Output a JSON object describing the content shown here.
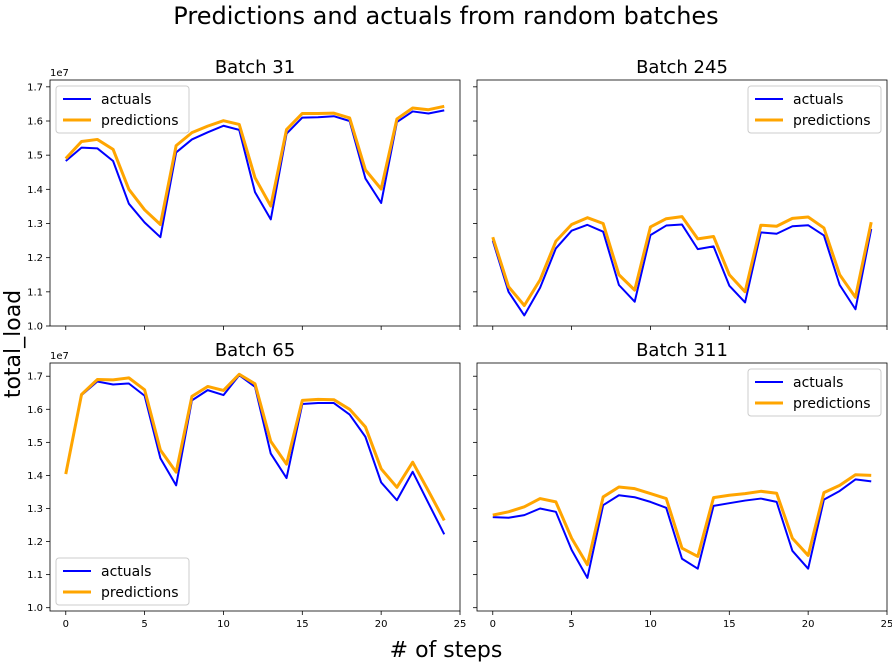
{
  "figure": {
    "title": "Predictions and actuals from random batches",
    "xlabel": "# of steps",
    "ylabel": "total_load"
  },
  "colors": {
    "actuals": "#0000ff",
    "predictions": "#ffa500"
  },
  "chart_data": [
    {
      "type": "line",
      "title": "Batch 31",
      "offset_label": "1e7",
      "xlim": [
        -1,
        25
      ],
      "ylim": [
        1.0,
        1.72
      ],
      "xticks": [
        "0",
        "5",
        "10",
        "15",
        "20",
        "25"
      ],
      "yticks": [
        "1.0",
        "1.1",
        "1.2",
        "1.3",
        "1.4",
        "1.5",
        "1.6",
        "1.7"
      ],
      "legend_position": "upper-left",
      "x": [
        0,
        1,
        2,
        3,
        4,
        5,
        6,
        7,
        8,
        9,
        10,
        11,
        12,
        13,
        14,
        15,
        16,
        17,
        18,
        19,
        20,
        21,
        22,
        23,
        24
      ],
      "series": [
        {
          "name": "actuals",
          "values": [
            1.483,
            1.522,
            1.52,
            1.483,
            1.358,
            1.303,
            1.26,
            1.508,
            1.546,
            1.567,
            1.586,
            1.574,
            1.392,
            1.312,
            1.563,
            1.61,
            1.611,
            1.614,
            1.6,
            1.432,
            1.36,
            1.597,
            1.628,
            1.622,
            1.631
          ]
        },
        {
          "name": "predictions",
          "values": [
            1.49,
            1.54,
            1.546,
            1.517,
            1.4,
            1.34,
            1.297,
            1.528,
            1.566,
            1.585,
            1.601,
            1.59,
            1.434,
            1.351,
            1.575,
            1.622,
            1.622,
            1.623,
            1.609,
            1.457,
            1.401,
            1.606,
            1.638,
            1.633,
            1.643
          ]
        }
      ]
    },
    {
      "type": "line",
      "title": "Batch 245",
      "offset_label": "",
      "xlim": [
        -1,
        25
      ],
      "ylim": [
        1.0,
        1.72
      ],
      "xticks": [
        "0",
        "5",
        "10",
        "15",
        "20",
        "25"
      ],
      "yticks": [
        "1.0",
        "1.1",
        "1.2",
        "1.3",
        "1.4",
        "1.5",
        "1.6",
        "1.7"
      ],
      "legend_position": "upper-right",
      "x": [
        0,
        1,
        2,
        3,
        4,
        5,
        6,
        7,
        8,
        9,
        10,
        11,
        12,
        13,
        14,
        15,
        16,
        17,
        18,
        19,
        20,
        21,
        22,
        23,
        24
      ],
      "series": [
        {
          "name": "actuals",
          "values": [
            1.25,
            1.1,
            1.031,
            1.112,
            1.227,
            1.279,
            1.296,
            1.276,
            1.12,
            1.071,
            1.266,
            1.294,
            1.297,
            1.225,
            1.233,
            1.118,
            1.069,
            1.274,
            1.27,
            1.292,
            1.295,
            1.265,
            1.12,
            1.049,
            1.284
          ]
        },
        {
          "name": "predictions",
          "values": [
            1.26,
            1.115,
            1.06,
            1.135,
            1.248,
            1.297,
            1.317,
            1.3,
            1.15,
            1.105,
            1.29,
            1.314,
            1.32,
            1.255,
            1.262,
            1.15,
            1.1,
            1.295,
            1.292,
            1.315,
            1.319,
            1.287,
            1.15,
            1.084,
            1.304
          ]
        }
      ]
    },
    {
      "type": "line",
      "title": "Batch 65",
      "offset_label": "1e7",
      "xlim": [
        -1,
        25
      ],
      "ylim": [
        0.99,
        1.74
      ],
      "xticks": [
        "0",
        "5",
        "10",
        "15",
        "20",
        "25"
      ],
      "yticks": [
        "1.0",
        "1.1",
        "1.2",
        "1.3",
        "1.4",
        "1.5",
        "1.6",
        "1.7"
      ],
      "legend_position": "lower-left",
      "x": [
        0,
        1,
        2,
        3,
        4,
        5,
        6,
        7,
        8,
        9,
        10,
        11,
        12,
        13,
        14,
        15,
        16,
        17,
        18,
        19,
        20,
        21,
        22,
        23,
        24
      ],
      "series": [
        {
          "name": "actuals",
          "values": [
            1.406,
            1.643,
            1.684,
            1.675,
            1.678,
            1.641,
            1.452,
            1.37,
            1.627,
            1.658,
            1.643,
            1.703,
            1.668,
            1.466,
            1.392,
            1.616,
            1.619,
            1.619,
            1.584,
            1.517,
            1.379,
            1.325,
            1.411,
            1.316,
            1.222
          ]
        },
        {
          "name": "predictions",
          "values": [
            1.404,
            1.645,
            1.69,
            1.689,
            1.695,
            1.659,
            1.477,
            1.41,
            1.639,
            1.669,
            1.657,
            1.706,
            1.677,
            1.503,
            1.434,
            1.627,
            1.63,
            1.629,
            1.6,
            1.547,
            1.42,
            1.364,
            1.44,
            1.353,
            1.264
          ]
        }
      ]
    },
    {
      "type": "line",
      "title": "Batch 311",
      "offset_label": "",
      "xlim": [
        -1,
        25
      ],
      "ylim": [
        0.99,
        1.74
      ],
      "xticks": [
        "0",
        "5",
        "10",
        "15",
        "20",
        "25"
      ],
      "yticks": [
        "1.0",
        "1.1",
        "1.2",
        "1.3",
        "1.4",
        "1.5",
        "1.6",
        "1.7"
      ],
      "legend_position": "upper-right",
      "x": [
        0,
        1,
        2,
        3,
        4,
        5,
        6,
        7,
        8,
        9,
        10,
        11,
        12,
        13,
        14,
        15,
        16,
        17,
        18,
        19,
        20,
        21,
        22,
        23,
        24
      ],
      "series": [
        {
          "name": "actuals",
          "values": [
            1.274,
            1.272,
            1.28,
            1.3,
            1.29,
            1.175,
            1.09,
            1.31,
            1.34,
            1.334,
            1.32,
            1.302,
            1.148,
            1.118,
            1.308,
            1.316,
            1.324,
            1.33,
            1.32,
            1.172,
            1.118,
            1.327,
            1.353,
            1.388,
            1.382
          ]
        },
        {
          "name": "predictions",
          "values": [
            1.28,
            1.29,
            1.305,
            1.33,
            1.32,
            1.21,
            1.13,
            1.335,
            1.365,
            1.36,
            1.345,
            1.33,
            1.18,
            1.155,
            1.333,
            1.34,
            1.345,
            1.352,
            1.346,
            1.21,
            1.158,
            1.348,
            1.37,
            1.402,
            1.4
          ]
        }
      ]
    }
  ]
}
